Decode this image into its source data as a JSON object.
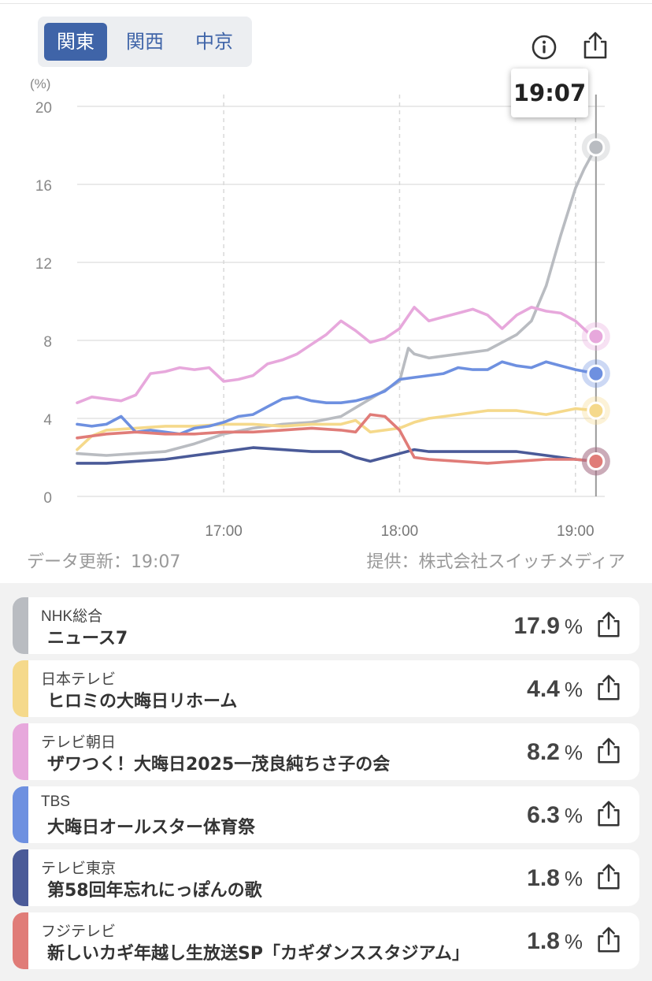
{
  "region_tabs": [
    "関東",
    "関西",
    "中京"
  ],
  "active_tab": 0,
  "icons": {
    "info": "info-icon",
    "share": "share-icon"
  },
  "tooltip_time": "19:07",
  "footer": {
    "updated": "データ更新：19:07",
    "source": "提供：株式会社スイッチメディア"
  },
  "chart_data": {
    "type": "line",
    "ylabel": "(%)",
    "ylim": [
      0,
      20
    ],
    "yticks": [
      "0",
      "4",
      "8",
      "12",
      "16",
      "20"
    ],
    "xlim": [
      "16:10",
      "19:10"
    ],
    "xticks": [
      "17:00",
      "18:00",
      "19:00"
    ],
    "grid": true,
    "cursor_time": "19:07",
    "series": [
      {
        "name": "NHK総合",
        "color": "#b9bcc1",
        "points": [
          [
            "16:10",
            2.2
          ],
          [
            "16:20",
            2.1
          ],
          [
            "16:30",
            2.2
          ],
          [
            "16:40",
            2.3
          ],
          [
            "16:50",
            2.7
          ],
          [
            "17:00",
            3.2
          ],
          [
            "17:10",
            3.5
          ],
          [
            "17:20",
            3.7
          ],
          [
            "17:30",
            3.8
          ],
          [
            "17:40",
            4.1
          ],
          [
            "17:50",
            5.0
          ],
          [
            "18:00",
            5.9
          ],
          [
            "18:03",
            7.6
          ],
          [
            "18:05",
            7.3
          ],
          [
            "18:10",
            7.1
          ],
          [
            "18:20",
            7.3
          ],
          [
            "18:30",
            7.5
          ],
          [
            "18:40",
            8.3
          ],
          [
            "18:45",
            9.0
          ],
          [
            "18:50",
            10.8
          ],
          [
            "18:55",
            13.4
          ],
          [
            "19:00",
            15.8
          ],
          [
            "19:03",
            16.8
          ],
          [
            "19:07",
            17.9
          ]
        ]
      },
      {
        "name": "日本テレビ",
        "color": "#f5d98b",
        "points": [
          [
            "16:10",
            2.4
          ],
          [
            "16:15",
            3.1
          ],
          [
            "16:20",
            3.4
          ],
          [
            "16:30",
            3.5
          ],
          [
            "16:40",
            3.6
          ],
          [
            "16:50",
            3.6
          ],
          [
            "17:00",
            3.7
          ],
          [
            "17:10",
            3.7
          ],
          [
            "17:20",
            3.6
          ],
          [
            "17:30",
            3.7
          ],
          [
            "17:40",
            3.7
          ],
          [
            "17:45",
            3.9
          ],
          [
            "17:50",
            3.3
          ],
          [
            "18:00",
            3.5
          ],
          [
            "18:05",
            3.8
          ],
          [
            "18:10",
            4.0
          ],
          [
            "18:20",
            4.2
          ],
          [
            "18:30",
            4.4
          ],
          [
            "18:40",
            4.4
          ],
          [
            "18:50",
            4.2
          ],
          [
            "19:00",
            4.5
          ],
          [
            "19:07",
            4.4
          ]
        ]
      },
      {
        "name": "テレビ朝日",
        "color": "#e7a8dc",
        "points": [
          [
            "16:10",
            4.8
          ],
          [
            "16:15",
            5.1
          ],
          [
            "16:20",
            5.0
          ],
          [
            "16:25",
            4.9
          ],
          [
            "16:30",
            5.2
          ],
          [
            "16:35",
            6.3
          ],
          [
            "16:40",
            6.4
          ],
          [
            "16:45",
            6.6
          ],
          [
            "16:50",
            6.5
          ],
          [
            "16:55",
            6.6
          ],
          [
            "17:00",
            5.9
          ],
          [
            "17:05",
            6.0
          ],
          [
            "17:10",
            6.2
          ],
          [
            "17:15",
            6.8
          ],
          [
            "17:20",
            7.0
          ],
          [
            "17:25",
            7.3
          ],
          [
            "17:30",
            7.8
          ],
          [
            "17:35",
            8.3
          ],
          [
            "17:40",
            9.0
          ],
          [
            "17:45",
            8.5
          ],
          [
            "17:50",
            7.9
          ],
          [
            "17:55",
            8.1
          ],
          [
            "18:00",
            8.6
          ],
          [
            "18:05",
            9.7
          ],
          [
            "18:10",
            9.0
          ],
          [
            "18:15",
            9.2
          ],
          [
            "18:20",
            9.4
          ],
          [
            "18:25",
            9.6
          ],
          [
            "18:30",
            9.3
          ],
          [
            "18:35",
            8.6
          ],
          [
            "18:40",
            9.3
          ],
          [
            "18:45",
            9.7
          ],
          [
            "18:50",
            9.5
          ],
          [
            "18:55",
            9.4
          ],
          [
            "19:00",
            9.0
          ],
          [
            "19:05",
            8.3
          ],
          [
            "19:07",
            8.2
          ]
        ]
      },
      {
        "name": "TBS",
        "color": "#6e90e0",
        "points": [
          [
            "16:10",
            3.7
          ],
          [
            "16:15",
            3.6
          ],
          [
            "16:20",
            3.7
          ],
          [
            "16:25",
            4.1
          ],
          [
            "16:30",
            3.3
          ],
          [
            "16:35",
            3.4
          ],
          [
            "16:40",
            3.3
          ],
          [
            "16:45",
            3.2
          ],
          [
            "16:50",
            3.5
          ],
          [
            "16:55",
            3.6
          ],
          [
            "17:00",
            3.8
          ],
          [
            "17:05",
            4.1
          ],
          [
            "17:10",
            4.2
          ],
          [
            "17:15",
            4.6
          ],
          [
            "17:20",
            5.0
          ],
          [
            "17:25",
            5.1
          ],
          [
            "17:30",
            4.9
          ],
          [
            "17:35",
            4.8
          ],
          [
            "17:40",
            4.8
          ],
          [
            "17:45",
            4.9
          ],
          [
            "17:50",
            5.1
          ],
          [
            "17:55",
            5.4
          ],
          [
            "18:00",
            6.0
          ],
          [
            "18:05",
            6.1
          ],
          [
            "18:10",
            6.2
          ],
          [
            "18:15",
            6.3
          ],
          [
            "18:20",
            6.6
          ],
          [
            "18:25",
            6.5
          ],
          [
            "18:30",
            6.5
          ],
          [
            "18:35",
            6.9
          ],
          [
            "18:40",
            6.7
          ],
          [
            "18:45",
            6.6
          ],
          [
            "18:50",
            6.9
          ],
          [
            "18:55",
            6.7
          ],
          [
            "19:00",
            6.5
          ],
          [
            "19:07",
            6.3
          ]
        ]
      },
      {
        "name": "テレビ東京",
        "color": "#4a5a98",
        "points": [
          [
            "16:10",
            1.7
          ],
          [
            "16:20",
            1.7
          ],
          [
            "16:30",
            1.8
          ],
          [
            "16:40",
            1.9
          ],
          [
            "16:50",
            2.1
          ],
          [
            "17:00",
            2.3
          ],
          [
            "17:10",
            2.5
          ],
          [
            "17:20",
            2.4
          ],
          [
            "17:30",
            2.3
          ],
          [
            "17:40",
            2.3
          ],
          [
            "17:45",
            2.0
          ],
          [
            "17:50",
            1.8
          ],
          [
            "17:55",
            2.0
          ],
          [
            "18:00",
            2.2
          ],
          [
            "18:05",
            2.4
          ],
          [
            "18:10",
            2.3
          ],
          [
            "18:20",
            2.3
          ],
          [
            "18:30",
            2.3
          ],
          [
            "18:40",
            2.3
          ],
          [
            "18:50",
            2.1
          ],
          [
            "19:00",
            1.9
          ],
          [
            "19:07",
            1.8
          ]
        ]
      },
      {
        "name": "フジテレビ",
        "color": "#e07c78",
        "points": [
          [
            "16:10",
            3.0
          ],
          [
            "16:20",
            3.2
          ],
          [
            "16:30",
            3.3
          ],
          [
            "16:40",
            3.2
          ],
          [
            "16:50",
            3.2
          ],
          [
            "17:00",
            3.3
          ],
          [
            "17:10",
            3.3
          ],
          [
            "17:20",
            3.4
          ],
          [
            "17:30",
            3.5
          ],
          [
            "17:40",
            3.4
          ],
          [
            "17:45",
            3.3
          ],
          [
            "17:50",
            4.2
          ],
          [
            "17:55",
            4.1
          ],
          [
            "18:00",
            3.4
          ],
          [
            "18:05",
            2.0
          ],
          [
            "18:10",
            1.9
          ],
          [
            "18:20",
            1.8
          ],
          [
            "18:30",
            1.7
          ],
          [
            "18:40",
            1.8
          ],
          [
            "18:50",
            1.9
          ],
          [
            "19:00",
            1.9
          ],
          [
            "19:07",
            1.8
          ]
        ]
      }
    ]
  },
  "programs": [
    {
      "channel": "NHK総合",
      "title": "ニュース7",
      "rating": "17.9",
      "unit": "%",
      "color": "#b9bcc1"
    },
    {
      "channel": "日本テレビ",
      "title": "ヒロミの大晦日リホーム",
      "rating": "4.4",
      "unit": "%",
      "color": "#f5d98b"
    },
    {
      "channel": "テレビ朝日",
      "title": "ザワつく！大晦日2025一茂良純ちさ子の会",
      "rating": "8.2",
      "unit": "%",
      "color": "#e7a8dc"
    },
    {
      "channel": "TBS",
      "title": "大晦日オールスター体育祭",
      "rating": "6.3",
      "unit": "%",
      "color": "#6e90e0"
    },
    {
      "channel": "テレビ東京",
      "title": "第58回年忘れにっぽんの歌",
      "rating": "1.8",
      "unit": "%",
      "color": "#4a5a98"
    },
    {
      "channel": "フジテレビ",
      "title": "新しいカギ年越し生放送SP「カギダンススタジアム」",
      "rating": "1.8",
      "unit": "%",
      "color": "#e07c78"
    }
  ]
}
